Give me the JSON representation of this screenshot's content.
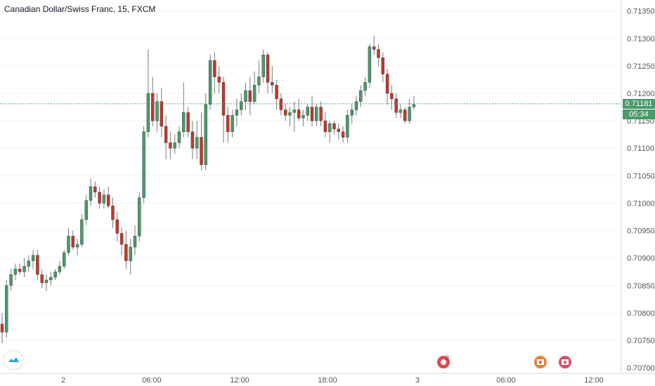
{
  "header": {
    "title": "Canadian Dollar/Swiss Franc, 15, FXCM"
  },
  "price_axis": {
    "labels": [
      "0.71350",
      "0.71300",
      "0.71250",
      "0.71200",
      "0.71150",
      "0.71100",
      "0.71050",
      "0.71000",
      "0.70950",
      "0.70900",
      "0.70850",
      "0.70800",
      "0.70750",
      "0.70700"
    ]
  },
  "time_axis": {
    "labels": [
      "2",
      "06:00",
      "12:00",
      "18:00",
      "3",
      "06:00",
      "12:00"
    ]
  },
  "last_price": {
    "value": "0.71181",
    "countdown": "05:34",
    "color": "#4a9a6a"
  },
  "events": {
    "badge_count": "2"
  },
  "colors": {
    "up": "#4a9a6a",
    "down": "#c0392b",
    "wick": "#7a7a7a",
    "grid": "#f0f3fa",
    "axis_text": "#555555"
  },
  "chart_data": {
    "type": "candlestick",
    "symbol": "CADCHF",
    "interval": "15",
    "ylim": [
      0.7069,
      0.7137
    ],
    "candles": [
      [
        0.7078,
        0.708,
        0.70745,
        0.70765
      ],
      [
        0.70765,
        0.7086,
        0.70755,
        0.7085
      ],
      [
        0.7085,
        0.7088,
        0.7084,
        0.7087
      ],
      [
        0.7087,
        0.7089,
        0.7086,
        0.7088
      ],
      [
        0.7088,
        0.7089,
        0.7087,
        0.70875
      ],
      [
        0.70875,
        0.709,
        0.70865,
        0.70885
      ],
      [
        0.70885,
        0.70905,
        0.70875,
        0.70895
      ],
      [
        0.70895,
        0.70915,
        0.7088,
        0.70905
      ],
      [
        0.70905,
        0.70915,
        0.7086,
        0.7087
      ],
      [
        0.7087,
        0.7088,
        0.70845,
        0.70855
      ],
      [
        0.70855,
        0.7087,
        0.7084,
        0.7086
      ],
      [
        0.7086,
        0.70875,
        0.7085,
        0.70865
      ],
      [
        0.70865,
        0.7088,
        0.7086,
        0.70875
      ],
      [
        0.70875,
        0.70895,
        0.7087,
        0.70885
      ],
      [
        0.70885,
        0.70915,
        0.7088,
        0.7091
      ],
      [
        0.7091,
        0.70955,
        0.70905,
        0.7094
      ],
      [
        0.7094,
        0.7095,
        0.70915,
        0.7092
      ],
      [
        0.7092,
        0.70935,
        0.70905,
        0.70925
      ],
      [
        0.70925,
        0.7098,
        0.7092,
        0.7097
      ],
      [
        0.7097,
        0.71015,
        0.7096,
        0.71005
      ],
      [
        0.71005,
        0.71045,
        0.70995,
        0.7103
      ],
      [
        0.7103,
        0.7104,
        0.7101,
        0.7102
      ],
      [
        0.7102,
        0.7103,
        0.7099,
        0.71
      ],
      [
        0.71,
        0.71025,
        0.7099,
        0.71015
      ],
      [
        0.71015,
        0.7103,
        0.7099,
        0.70995
      ],
      [
        0.70995,
        0.7101,
        0.70955,
        0.7097
      ],
      [
        0.7097,
        0.70985,
        0.7093,
        0.70945
      ],
      [
        0.70945,
        0.70955,
        0.70905,
        0.70925
      ],
      [
        0.70925,
        0.7095,
        0.7088,
        0.70895
      ],
      [
        0.70895,
        0.70935,
        0.7087,
        0.7092
      ],
      [
        0.7092,
        0.7096,
        0.70905,
        0.7094
      ],
      [
        0.7094,
        0.7102,
        0.7093,
        0.7101
      ],
      [
        0.7101,
        0.7114,
        0.71,
        0.7113
      ],
      [
        0.7113,
        0.7128,
        0.7112,
        0.712
      ],
      [
        0.712,
        0.7123,
        0.7114,
        0.7115
      ],
      [
        0.7115,
        0.712,
        0.7113,
        0.71185
      ],
      [
        0.71185,
        0.7121,
        0.7112,
        0.7114
      ],
      [
        0.7114,
        0.7116,
        0.7108,
        0.7111
      ],
      [
        0.7111,
        0.7113,
        0.7108,
        0.711
      ],
      [
        0.711,
        0.71125,
        0.7109,
        0.7111
      ],
      [
        0.7111,
        0.7114,
        0.711,
        0.7113
      ],
      [
        0.7113,
        0.7122,
        0.7112,
        0.71165
      ],
      [
        0.71165,
        0.71175,
        0.7112,
        0.7113
      ],
      [
        0.7113,
        0.7115,
        0.7108,
        0.711
      ],
      [
        0.711,
        0.7115,
        0.7108,
        0.7112
      ],
      [
        0.7112,
        0.71165,
        0.7106,
        0.7107
      ],
      [
        0.7107,
        0.712,
        0.7106,
        0.7118
      ],
      [
        0.7118,
        0.7127,
        0.7117,
        0.7126
      ],
      [
        0.7126,
        0.71275,
        0.712,
        0.7123
      ],
      [
        0.7123,
        0.7125,
        0.712,
        0.7122
      ],
      [
        0.7122,
        0.7123,
        0.7111,
        0.7116
      ],
      [
        0.7116,
        0.71175,
        0.7111,
        0.7113
      ],
      [
        0.7113,
        0.7117,
        0.7112,
        0.7116
      ],
      [
        0.7116,
        0.7119,
        0.7114,
        0.7117
      ],
      [
        0.7117,
        0.712,
        0.7116,
        0.71185
      ],
      [
        0.71185,
        0.7122,
        0.7117,
        0.71205
      ],
      [
        0.71205,
        0.7123,
        0.7116,
        0.71185
      ],
      [
        0.71185,
        0.7124,
        0.7118,
        0.71215
      ],
      [
        0.71215,
        0.7126,
        0.712,
        0.7123
      ],
      [
        0.7123,
        0.7128,
        0.7122,
        0.7127
      ],
      [
        0.7127,
        0.71275,
        0.712,
        0.7122
      ],
      [
        0.7122,
        0.7125,
        0.712,
        0.71215
      ],
      [
        0.71215,
        0.71225,
        0.7117,
        0.7119
      ],
      [
        0.7119,
        0.712,
        0.7116,
        0.7117
      ],
      [
        0.7117,
        0.7118,
        0.7115,
        0.7116
      ],
      [
        0.7116,
        0.71175,
        0.7114,
        0.71165
      ],
      [
        0.71165,
        0.71185,
        0.7113,
        0.7117
      ],
      [
        0.7117,
        0.7119,
        0.7115,
        0.71155
      ],
      [
        0.71155,
        0.7117,
        0.7114,
        0.7116
      ],
      [
        0.7116,
        0.7118,
        0.7115,
        0.71175
      ],
      [
        0.71175,
        0.71195,
        0.7114,
        0.7115
      ],
      [
        0.7115,
        0.7118,
        0.7114,
        0.71175
      ],
      [
        0.71175,
        0.71185,
        0.7114,
        0.7115
      ],
      [
        0.7115,
        0.71165,
        0.7112,
        0.7113
      ],
      [
        0.7113,
        0.7115,
        0.7111,
        0.71145
      ],
      [
        0.71145,
        0.7115,
        0.71125,
        0.71135
      ],
      [
        0.71135,
        0.71145,
        0.71115,
        0.7113
      ],
      [
        0.7113,
        0.7114,
        0.7111,
        0.7112
      ],
      [
        0.7112,
        0.7117,
        0.7111,
        0.7116
      ],
      [
        0.7116,
        0.7118,
        0.71145,
        0.7117
      ],
      [
        0.7117,
        0.71195,
        0.7116,
        0.71185
      ],
      [
        0.71185,
        0.71215,
        0.71175,
        0.71205
      ],
      [
        0.71205,
        0.7123,
        0.71195,
        0.7122
      ],
      [
        0.7122,
        0.7129,
        0.7121,
        0.71285
      ],
      [
        0.71285,
        0.71305,
        0.7127,
        0.7128
      ],
      [
        0.7128,
        0.7129,
        0.7125,
        0.71265
      ],
      [
        0.71265,
        0.71275,
        0.7122,
        0.71235
      ],
      [
        0.71235,
        0.71245,
        0.7118,
        0.712
      ],
      [
        0.712,
        0.71215,
        0.7117,
        0.7119
      ],
      [
        0.7119,
        0.712,
        0.71155,
        0.71165
      ],
      [
        0.71165,
        0.7118,
        0.71155,
        0.7117
      ],
      [
        0.7117,
        0.71175,
        0.71145,
        0.7115
      ],
      [
        0.7115,
        0.7119,
        0.71145,
        0.71175
      ],
      [
        0.71175,
        0.71195,
        0.7117,
        0.7118
      ]
    ]
  }
}
